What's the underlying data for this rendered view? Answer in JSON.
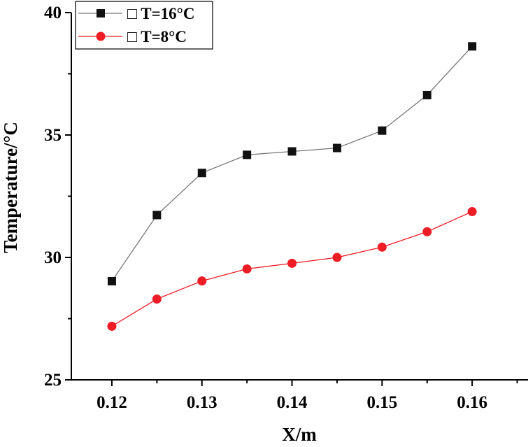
{
  "chart_data": {
    "type": "line",
    "xlabel": "X/m",
    "ylabel": "Temperature/°C",
    "xlim": [
      0.1155,
      0.1662
    ],
    "ylim": [
      25,
      40
    ],
    "xticks": [
      0.12,
      0.13,
      0.14,
      0.15,
      0.16
    ],
    "xtick_labels": [
      "0.12",
      "0.13",
      "0.14",
      "0.15",
      "0.16"
    ],
    "yticks": [
      25,
      30,
      35,
      40
    ],
    "ytick_labels": [
      "25",
      "30",
      "35",
      "40"
    ],
    "legend_position": "top-left",
    "x": [
      0.12,
      0.125,
      0.13,
      0.135,
      0.14,
      0.145,
      0.15,
      0.155,
      0.16
    ],
    "series": [
      {
        "name": "T=16°C",
        "legend_label": "□ T=16°C",
        "marker": "square",
        "color": "#111111",
        "line_color": "#777777",
        "values": [
          29.03,
          31.73,
          33.45,
          34.19,
          34.33,
          34.47,
          35.18,
          36.63,
          38.62
        ]
      },
      {
        "name": "T=8°C",
        "legend_label": "□ T=8°C",
        "marker": "circle",
        "color": "#ee1c25",
        "line_color": "#ee1c25",
        "values": [
          27.19,
          28.3,
          29.04,
          29.53,
          29.76,
          30.0,
          30.42,
          31.05,
          31.87
        ]
      }
    ]
  }
}
